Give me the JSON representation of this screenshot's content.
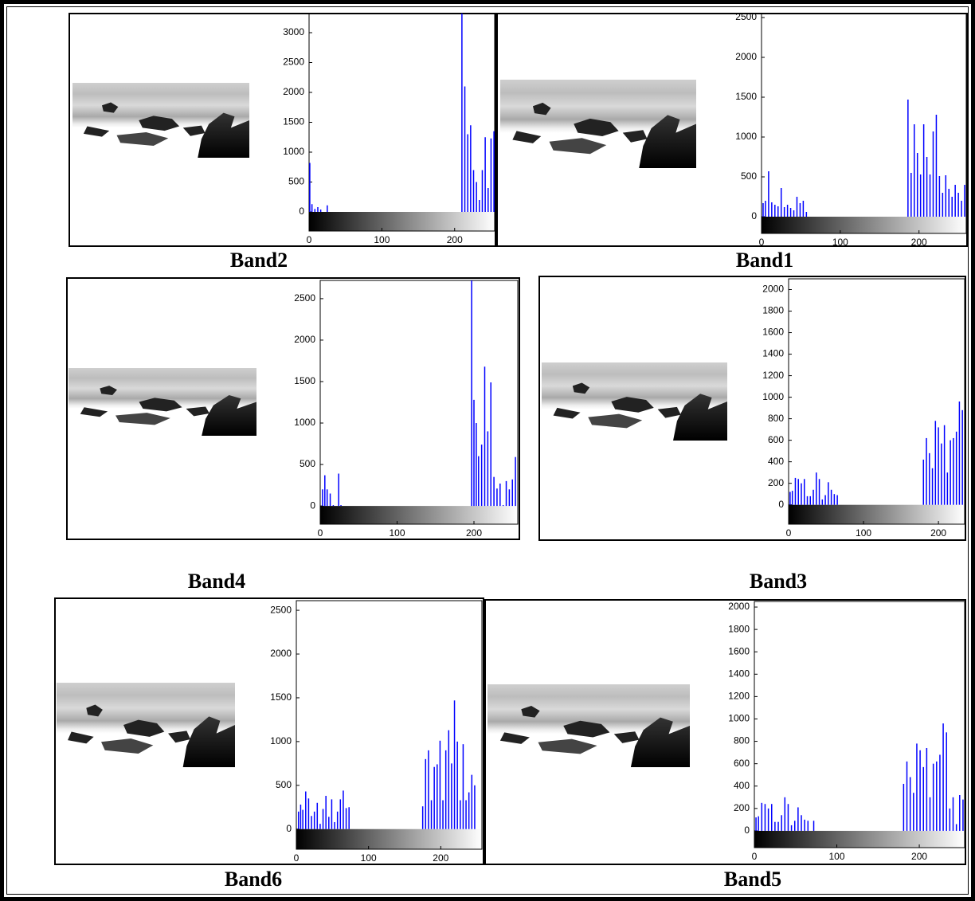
{
  "chart_data": [
    {
      "type": "stem",
      "title": "Band2",
      "color": "#0000ff",
      "xlim": [
        0,
        255
      ],
      "ylim": [
        -320,
        3320
      ],
      "xticks": [
        0,
        100,
        200
      ],
      "yticks": [
        0,
        500,
        1000,
        1500,
        2000,
        2500,
        3000
      ],
      "x": [
        1,
        4,
        8,
        12,
        16,
        25,
        210,
        214,
        218,
        222,
        226,
        230,
        234,
        238,
        242,
        246,
        250,
        254
      ],
      "values": [
        820,
        130,
        50,
        80,
        40,
        110,
        3320,
        2100,
        1300,
        1450,
        700,
        500,
        200,
        700,
        1250,
        400,
        1230,
        1350
      ]
    },
    {
      "type": "stem",
      "title": "Band1",
      "color": "#0000ff",
      "xlim": [
        0,
        260
      ],
      "ylim": [
        -210,
        2550
      ],
      "xticks": [
        0,
        100,
        200
      ],
      "yticks": [
        0,
        500,
        1000,
        1500,
        2000,
        2500
      ],
      "x": [
        2,
        5,
        9,
        13,
        17,
        21,
        25,
        29,
        33,
        37,
        41,
        45,
        49,
        53,
        57,
        186,
        190,
        194,
        198,
        202,
        206,
        210,
        214,
        218,
        222,
        226,
        230,
        234,
        238,
        242,
        246,
        250,
        254,
        258
      ],
      "values": [
        170,
        200,
        570,
        180,
        150,
        130,
        360,
        120,
        150,
        110,
        80,
        250,
        170,
        200,
        60,
        1470,
        550,
        1160,
        800,
        530,
        1160,
        750,
        530,
        1070,
        1280,
        510,
        300,
        520,
        350,
        250,
        400,
        300,
        200,
        400
      ]
    },
    {
      "type": "stem",
      "title": "Band4",
      "color": "#0000ff",
      "xlim": [
        0,
        257
      ],
      "ylim": [
        -220,
        2720
      ],
      "xticks": [
        0,
        100,
        200
      ],
      "yticks": [
        0,
        500,
        1000,
        1500,
        2000,
        2500
      ],
      "x": [
        3,
        6,
        9,
        13,
        17,
        24,
        27,
        197,
        200,
        203,
        206,
        210,
        214,
        218,
        222,
        226,
        230,
        234,
        238,
        242,
        246,
        250,
        254
      ],
      "values": [
        200,
        370,
        200,
        150,
        10,
        390,
        10,
        2720,
        1280,
        1000,
        600,
        740,
        1680,
        900,
        1490,
        350,
        210,
        270,
        10,
        300,
        200,
        320,
        590
      ]
    },
    {
      "type": "stem",
      "title": "Band3",
      "color": "#0000ff",
      "xlim": [
        0,
        235
      ],
      "ylim": [
        -180,
        2100
      ],
      "xticks": [
        0,
        100,
        200
      ],
      "yticks": [
        0,
        200,
        400,
        600,
        800,
        1000,
        1200,
        1400,
        1600,
        1800,
        2000
      ],
      "x": [
        2,
        5,
        9,
        13,
        17,
        21,
        25,
        29,
        33,
        37,
        41,
        45,
        49,
        53,
        57,
        61,
        65,
        180,
        184,
        188,
        192,
        196,
        200,
        204,
        208,
        212,
        216,
        220,
        224,
        228,
        232
      ],
      "values": [
        120,
        130,
        250,
        240,
        200,
        240,
        80,
        80,
        140,
        300,
        240,
        50,
        90,
        210,
        140,
        100,
        90,
        420,
        620,
        480,
        340,
        780,
        720,
        570,
        740,
        300,
        600,
        620,
        680,
        960,
        880
      ]
    },
    {
      "type": "stem",
      "title": "Band6",
      "color": "#0000ff",
      "xlim": [
        0,
        257
      ],
      "ylim": [
        -230,
        2610
      ],
      "xticks": [
        0,
        100,
        200
      ],
      "yticks": [
        0,
        500,
        1000,
        1500,
        2000,
        2500
      ],
      "x": [
        3,
        6,
        9,
        13,
        17,
        21,
        25,
        29,
        33,
        37,
        41,
        45,
        49,
        53,
        57,
        61,
        65,
        69,
        73,
        175,
        179,
        183,
        187,
        191,
        195,
        199,
        203,
        207,
        211,
        215,
        219,
        223,
        227,
        231,
        235,
        239,
        243,
        247
      ],
      "values": [
        200,
        280,
        220,
        430,
        350,
        150,
        200,
        300,
        60,
        230,
        380,
        140,
        340,
        80,
        200,
        340,
        440,
        240,
        250,
        260,
        800,
        900,
        330,
        710,
        740,
        1010,
        330,
        900,
        1130,
        750,
        1470,
        1000,
        330,
        970,
        330,
        420,
        620,
        500
      ]
    },
    {
      "type": "stem",
      "title": "Band5",
      "color": "#0000ff",
      "xlim": [
        0,
        255
      ],
      "ylim": [
        -150,
        2050
      ],
      "xticks": [
        0,
        100,
        200
      ],
      "yticks": [
        0,
        200,
        400,
        600,
        800,
        1000,
        1200,
        1400,
        1600,
        1800,
        2000
      ],
      "x": [
        2,
        5,
        9,
        13,
        17,
        21,
        25,
        29,
        33,
        37,
        41,
        45,
        49,
        53,
        57,
        61,
        65,
        72,
        181,
        185,
        189,
        193,
        197,
        201,
        205,
        209,
        213,
        217,
        221,
        225,
        229,
        233,
        237,
        241,
        245,
        249,
        253
      ],
      "values": [
        120,
        130,
        250,
        240,
        200,
        240,
        80,
        80,
        140,
        300,
        240,
        50,
        90,
        210,
        140,
        100,
        90,
        90,
        420,
        620,
        480,
        340,
        780,
        720,
        570,
        740,
        300,
        600,
        620,
        680,
        960,
        880,
        200,
        300,
        60,
        320,
        280
      ]
    }
  ]
}
